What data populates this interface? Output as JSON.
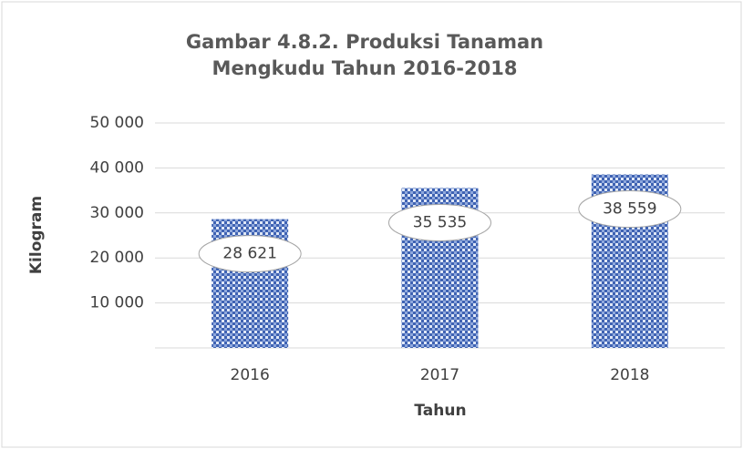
{
  "chart_data": {
    "type": "bar",
    "title": "Gambar 4.8.2. Produksi Tanaman Mengkudu Tahun 2016-2018",
    "x_label": "Tahun",
    "y_label": "Kilogram",
    "categories": [
      "2016",
      "2017",
      "2018"
    ],
    "values": [
      28621,
      35535,
      38559
    ],
    "value_labels": [
      "28 621",
      "35 535",
      "38 559"
    ],
    "color": "#4a6fbf",
    "ylim": [
      0,
      50000
    ],
    "yticks": [
      {
        "value": 10000,
        "label": "10 000"
      },
      {
        "value": 20000,
        "label": "20 000"
      },
      {
        "value": 30000,
        "label": "30 000"
      },
      {
        "value": 40000,
        "label": "40 000"
      },
      {
        "value": 50000,
        "label": "50 000"
      }
    ],
    "grid": true
  }
}
